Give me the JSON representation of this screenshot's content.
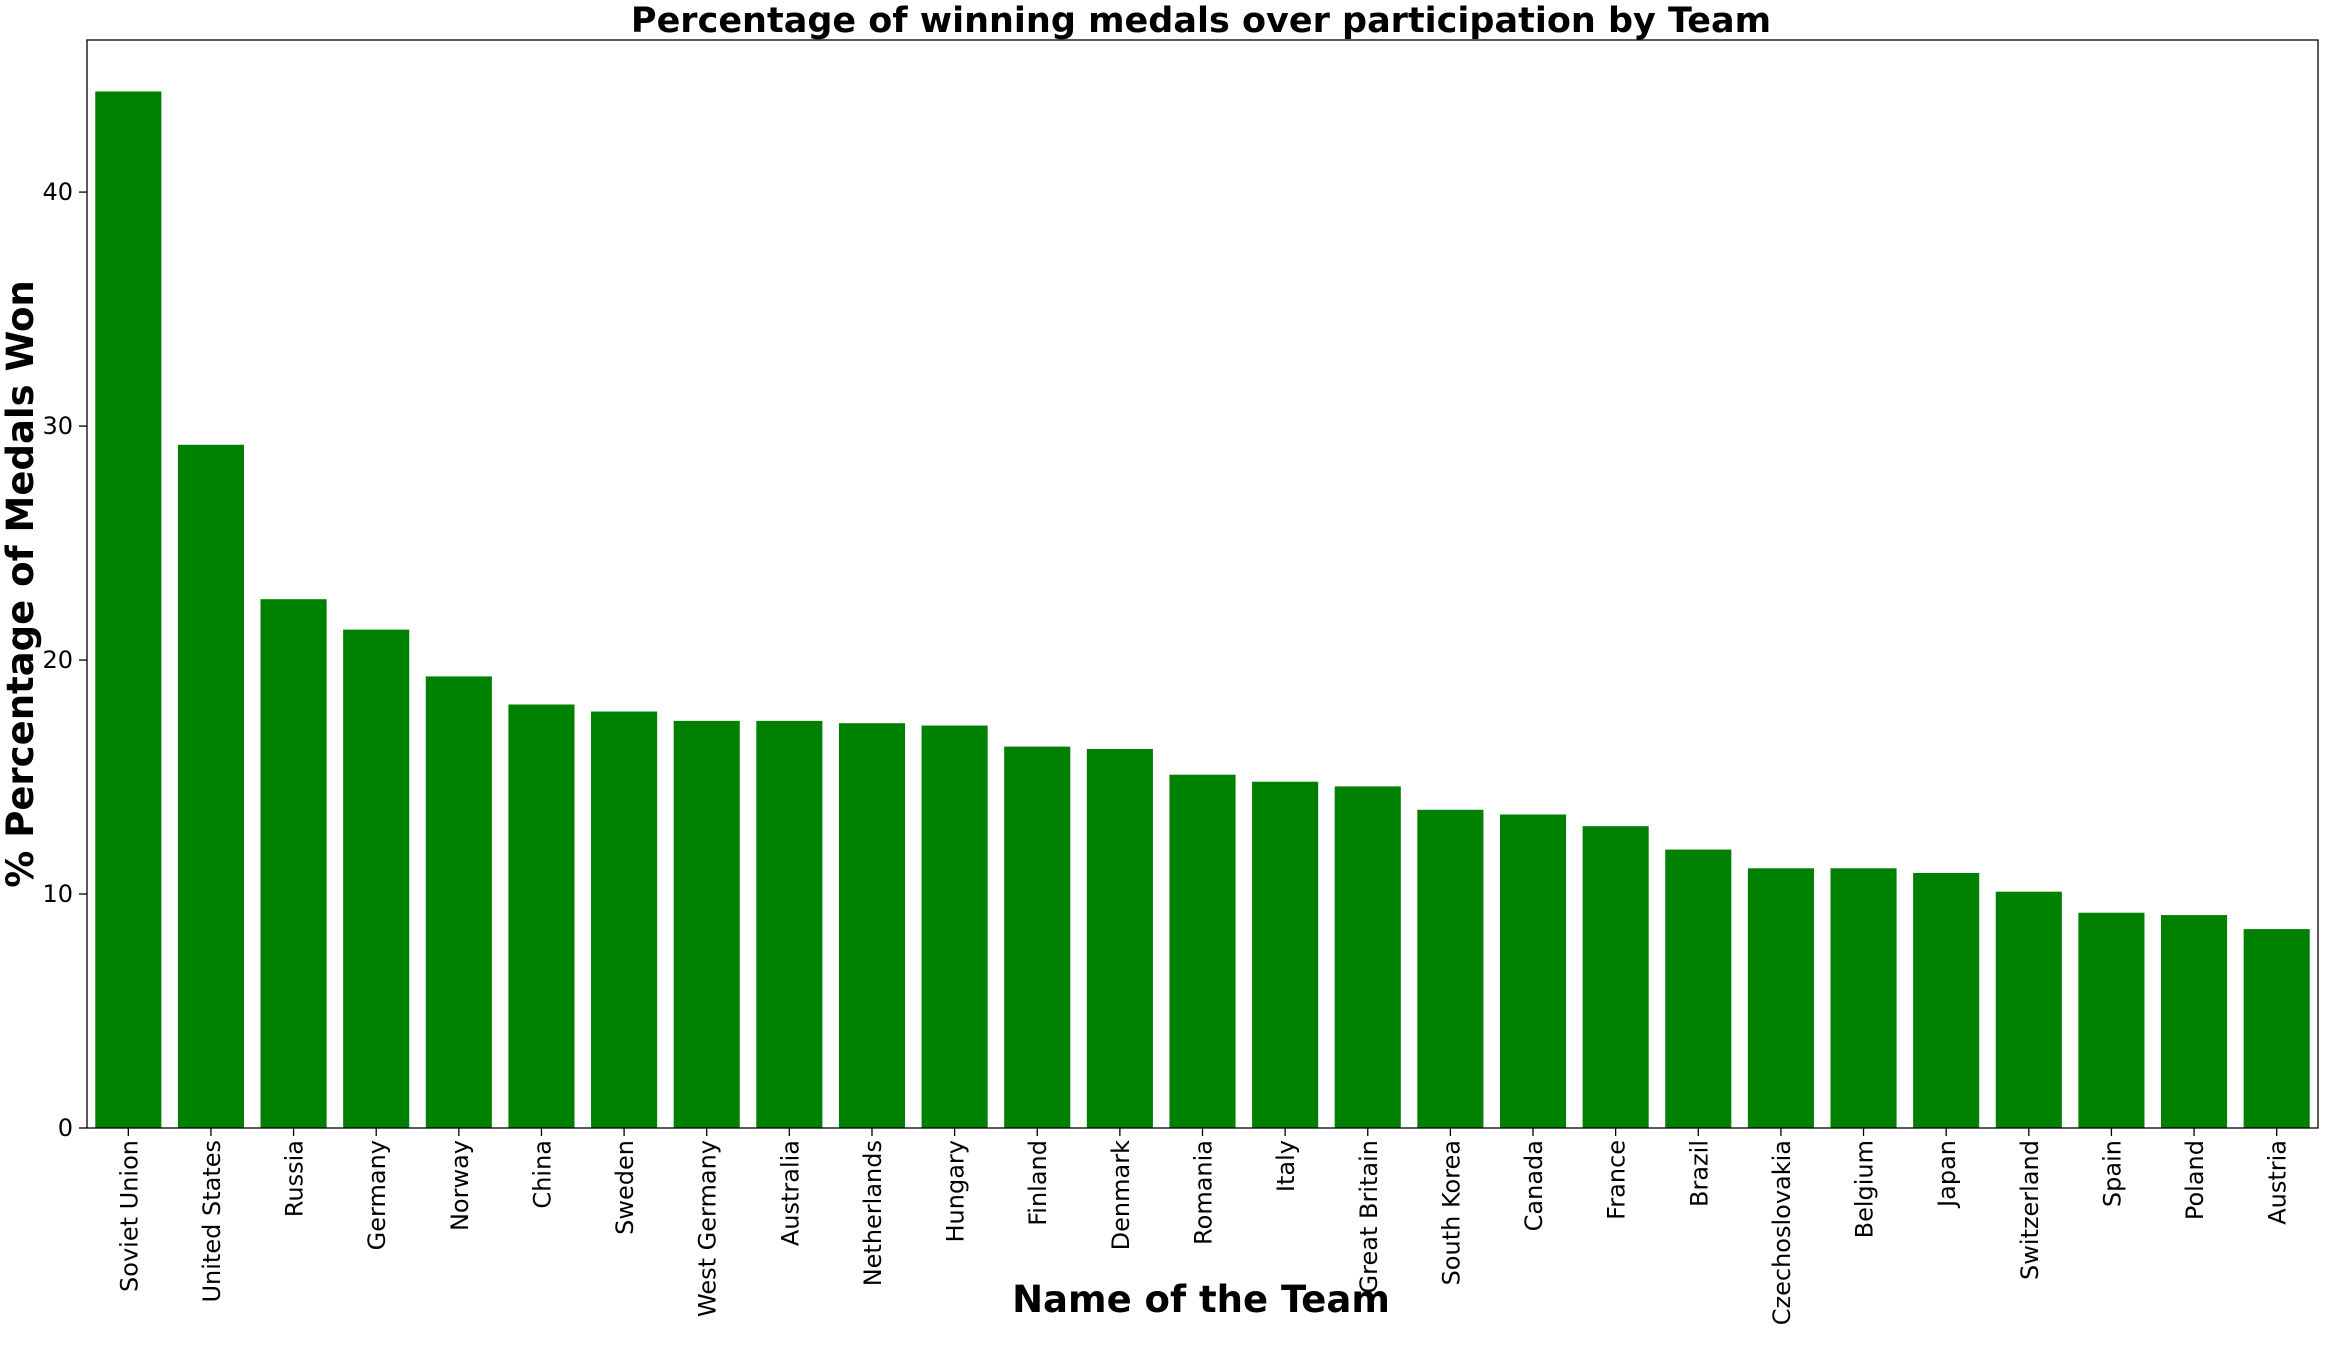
{
  "chart_data": {
    "type": "bar",
    "title": "Percentage of winning medals over participation by Team",
    "xlabel": "Name of the Team",
    "ylabel": "% Percentage of Medals Won",
    "categories": [
      "Soviet Union",
      "United States",
      "Russia",
      "Germany",
      "Norway",
      "China",
      "Sweden",
      "West Germany",
      "Australia",
      "Netherlands",
      "Hungary",
      "Finland",
      "Denmark",
      "Romania",
      "Italy",
      "Great Britain",
      "South Korea",
      "Canada",
      "France",
      "Brazil",
      "Czechoslovakia",
      "Belgium",
      "Japan",
      "Switzerland",
      "Spain",
      "Poland",
      "Austria"
    ],
    "values": [
      44.3,
      29.2,
      22.6,
      21.3,
      19.3,
      18.1,
      17.8,
      17.4,
      17.4,
      17.3,
      17.2,
      16.3,
      16.2,
      15.1,
      14.8,
      14.6,
      13.6,
      13.4,
      12.9,
      11.9,
      11.1,
      11.1,
      10.9,
      10.1,
      9.2,
      9.1,
      8.5
    ],
    "yticks": [
      0,
      10,
      20,
      30,
      40
    ],
    "ylim": [
      0,
      46.5
    ],
    "bar_color": "#008000",
    "grid": false,
    "legend": "none"
  }
}
